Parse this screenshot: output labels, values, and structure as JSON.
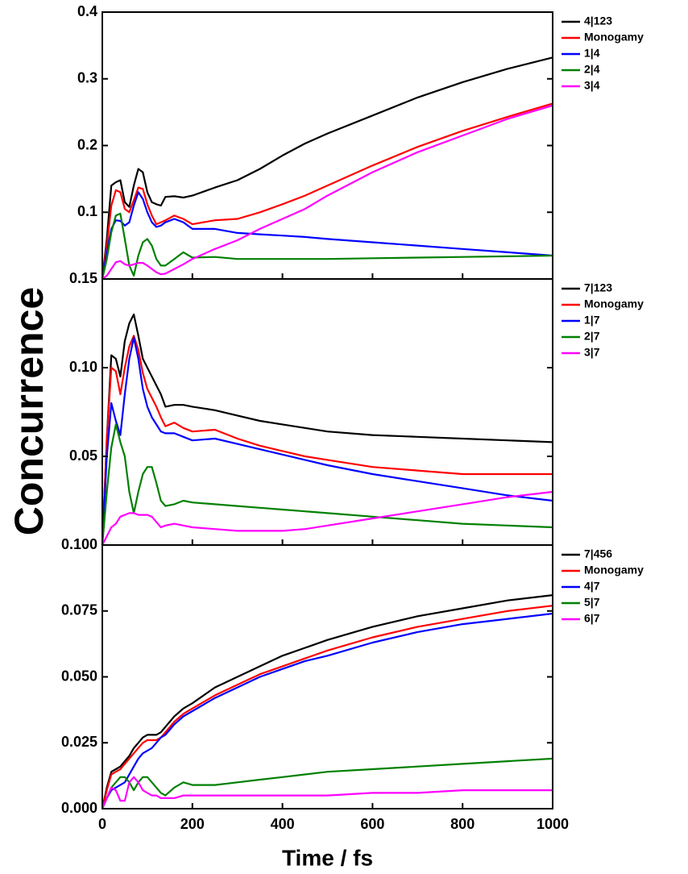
{
  "chart_data": [
    {
      "type": "line",
      "legend": "right",
      "x": [
        0,
        10,
        20,
        30,
        40,
        50,
        60,
        70,
        80,
        90,
        100,
        110,
        120,
        130,
        140,
        160,
        180,
        200,
        250,
        300,
        350,
        400,
        450,
        500,
        600,
        700,
        800,
        900,
        1000
      ],
      "xlim": [
        0,
        1000
      ],
      "xticks": [
        0,
        200,
        400,
        600,
        800,
        1000
      ],
      "ylim": [
        0,
        0.4
      ],
      "yticks": [
        0.1,
        0.2,
        0.3,
        0.4
      ],
      "series": [
        {
          "name": "4|123",
          "color": "#000000",
          "values": [
            0,
            0.06,
            0.14,
            0.145,
            0.148,
            0.115,
            0.108,
            0.14,
            0.165,
            0.16,
            0.13,
            0.115,
            0.112,
            0.11,
            0.123,
            0.124,
            0.122,
            0.125,
            0.137,
            0.148,
            0.165,
            0.185,
            0.203,
            0.218,
            0.245,
            0.272,
            0.295,
            0.315,
            0.332
          ]
        },
        {
          "name": "Monogamy",
          "color": "#ff0000",
          "values": [
            0,
            0.05,
            0.11,
            0.133,
            0.13,
            0.105,
            0.1,
            0.118,
            0.137,
            0.135,
            0.112,
            0.095,
            0.082,
            0.085,
            0.088,
            0.095,
            0.09,
            0.082,
            0.088,
            0.09,
            0.1,
            0.112,
            0.125,
            0.14,
            0.17,
            0.198,
            0.222,
            0.243,
            0.263
          ]
        },
        {
          "name": "1|4",
          "color": "#0000ff",
          "values": [
            0,
            0.04,
            0.075,
            0.088,
            0.087,
            0.08,
            0.085,
            0.11,
            0.13,
            0.12,
            0.1,
            0.085,
            0.078,
            0.08,
            0.085,
            0.09,
            0.085,
            0.075,
            0.075,
            0.069,
            0.067,
            0.065,
            0.063,
            0.06,
            0.055,
            0.05,
            0.045,
            0.04,
            0.035
          ]
        },
        {
          "name": "2|4",
          "color": "#008000",
          "values": [
            0,
            0.03,
            0.07,
            0.095,
            0.098,
            0.06,
            0.02,
            0.005,
            0.035,
            0.055,
            0.06,
            0.05,
            0.03,
            0.02,
            0.02,
            0.03,
            0.04,
            0.032,
            0.033,
            0.03,
            0.03,
            0.03,
            0.03,
            0.03,
            0.031,
            0.032,
            0.033,
            0.034,
            0.035
          ]
        },
        {
          "name": "3|4",
          "color": "#ff00ff",
          "values": [
            0,
            0.005,
            0.015,
            0.025,
            0.027,
            0.022,
            0.02,
            0.022,
            0.024,
            0.024,
            0.02,
            0.015,
            0.01,
            0.007,
            0.008,
            0.015,
            0.022,
            0.03,
            0.045,
            0.058,
            0.075,
            0.09,
            0.105,
            0.125,
            0.16,
            0.19,
            0.215,
            0.24,
            0.26
          ]
        }
      ]
    },
    {
      "type": "line",
      "legend": "right",
      "ylabel": "Concurrence",
      "x": [
        0,
        10,
        20,
        30,
        40,
        50,
        60,
        70,
        80,
        90,
        100,
        110,
        120,
        130,
        140,
        160,
        180,
        200,
        250,
        300,
        350,
        400,
        450,
        500,
        600,
        700,
        800,
        900,
        1000
      ],
      "xlim": [
        0,
        1000
      ],
      "xticks": [
        0,
        200,
        400,
        600,
        800,
        1000
      ],
      "ylim": [
        0,
        0.15
      ],
      "yticks": [
        {
          "value": 0.05,
          "label": "0.05"
        },
        {
          "value": 0.1,
          "label": "0.10"
        },
        {
          "value": 0.15,
          "label": "0.15"
        }
      ],
      "series": [
        {
          "name": "7|123",
          "color": "#000000",
          "values": [
            0,
            0.06,
            0.107,
            0.105,
            0.095,
            0.115,
            0.125,
            0.13,
            0.118,
            0.105,
            0.1,
            0.095,
            0.09,
            0.085,
            0.078,
            0.079,
            0.079,
            0.078,
            0.076,
            0.073,
            0.07,
            0.068,
            0.066,
            0.064,
            0.062,
            0.061,
            0.06,
            0.059,
            0.058
          ]
        },
        {
          "name": "Monogamy",
          "color": "#ff0000",
          "values": [
            0,
            0.06,
            0.1,
            0.098,
            0.085,
            0.1,
            0.112,
            0.118,
            0.11,
            0.097,
            0.088,
            0.083,
            0.078,
            0.072,
            0.067,
            0.069,
            0.066,
            0.064,
            0.065,
            0.06,
            0.056,
            0.053,
            0.05,
            0.048,
            0.044,
            0.042,
            0.04,
            0.04,
            0.04
          ]
        },
        {
          "name": "1|7",
          "color": "#0000ff",
          "values": [
            0,
            0.05,
            0.08,
            0.07,
            0.062,
            0.085,
            0.105,
            0.117,
            0.105,
            0.088,
            0.078,
            0.072,
            0.068,
            0.064,
            0.063,
            0.063,
            0.061,
            0.059,
            0.06,
            0.057,
            0.054,
            0.051,
            0.048,
            0.045,
            0.04,
            0.036,
            0.032,
            0.028,
            0.025
          ]
        },
        {
          "name": "2|7",
          "color": "#008000",
          "values": [
            0,
            0.03,
            0.055,
            0.068,
            0.058,
            0.05,
            0.03,
            0.018,
            0.03,
            0.04,
            0.044,
            0.044,
            0.035,
            0.025,
            0.022,
            0.023,
            0.025,
            0.024,
            0.023,
            0.022,
            0.021,
            0.02,
            0.019,
            0.018,
            0.016,
            0.014,
            0.012,
            0.011,
            0.01
          ]
        },
        {
          "name": "3|7",
          "color": "#ff00ff",
          "values": [
            0,
            0.005,
            0.01,
            0.012,
            0.016,
            0.017,
            0.018,
            0.018,
            0.017,
            0.017,
            0.017,
            0.016,
            0.013,
            0.01,
            0.011,
            0.012,
            0.011,
            0.01,
            0.009,
            0.008,
            0.008,
            0.008,
            0.009,
            0.011,
            0.015,
            0.019,
            0.023,
            0.027,
            0.03
          ]
        }
      ]
    },
    {
      "type": "line",
      "legend": "right",
      "xlabel": "Time / fs",
      "x": [
        0,
        10,
        20,
        30,
        40,
        50,
        60,
        70,
        80,
        90,
        100,
        110,
        120,
        130,
        140,
        160,
        180,
        200,
        250,
        300,
        350,
        400,
        450,
        500,
        600,
        700,
        800,
        900,
        1000
      ],
      "xlim": [
        0,
        1000
      ],
      "xticks": [
        0,
        200,
        400,
        600,
        800,
        1000
      ],
      "ylim": [
        0,
        0.1
      ],
      "yticks": [
        {
          "value": 0,
          "label": "0.000"
        },
        {
          "value": 0.025,
          "label": "0.025"
        },
        {
          "value": 0.05,
          "label": "0.050"
        },
        {
          "value": 0.075,
          "label": "0.075"
        },
        {
          "value": 0.1,
          "label": "0.100"
        }
      ],
      "series": [
        {
          "name": "7|456",
          "color": "#000000",
          "values": [
            0,
            0.008,
            0.014,
            0.015,
            0.016,
            0.018,
            0.02,
            0.023,
            0.025,
            0.027,
            0.028,
            0.028,
            0.028,
            0.029,
            0.031,
            0.035,
            0.038,
            0.04,
            0.046,
            0.05,
            0.054,
            0.058,
            0.061,
            0.064,
            0.069,
            0.073,
            0.076,
            0.079,
            0.081
          ]
        },
        {
          "name": "Monogamy",
          "color": "#ff0000",
          "values": [
            0,
            0.007,
            0.013,
            0.014,
            0.015,
            0.017,
            0.019,
            0.021,
            0.023,
            0.025,
            0.026,
            0.026,
            0.026,
            0.027,
            0.029,
            0.033,
            0.036,
            0.038,
            0.043,
            0.047,
            0.051,
            0.054,
            0.057,
            0.06,
            0.065,
            0.069,
            0.072,
            0.075,
            0.077
          ]
        },
        {
          "name": "4|7",
          "color": "#0000ff",
          "values": [
            0,
            0.004,
            0.007,
            0.008,
            0.009,
            0.01,
            0.013,
            0.016,
            0.019,
            0.021,
            0.022,
            0.023,
            0.025,
            0.027,
            0.028,
            0.032,
            0.035,
            0.037,
            0.042,
            0.046,
            0.05,
            0.053,
            0.056,
            0.058,
            0.063,
            0.067,
            0.07,
            0.072,
            0.074
          ]
        },
        {
          "name": "5|7",
          "color": "#008000",
          "values": [
            0,
            0.004,
            0.008,
            0.01,
            0.012,
            0.012,
            0.01,
            0.007,
            0.01,
            0.012,
            0.012,
            0.01,
            0.008,
            0.006,
            0.005,
            0.008,
            0.01,
            0.009,
            0.009,
            0.01,
            0.011,
            0.012,
            0.013,
            0.014,
            0.015,
            0.016,
            0.017,
            0.018,
            0.019
          ]
        },
        {
          "name": "6|7",
          "color": "#ff00ff",
          "values": [
            0,
            0.004,
            0.008,
            0.007,
            0.003,
            0.003,
            0.01,
            0.012,
            0.01,
            0.007,
            0.006,
            0.005,
            0.005,
            0.004,
            0.004,
            0.004,
            0.005,
            0.005,
            0.005,
            0.005,
            0.005,
            0.005,
            0.005,
            0.005,
            0.006,
            0.006,
            0.007,
            0.007,
            0.007
          ]
        }
      ]
    }
  ]
}
